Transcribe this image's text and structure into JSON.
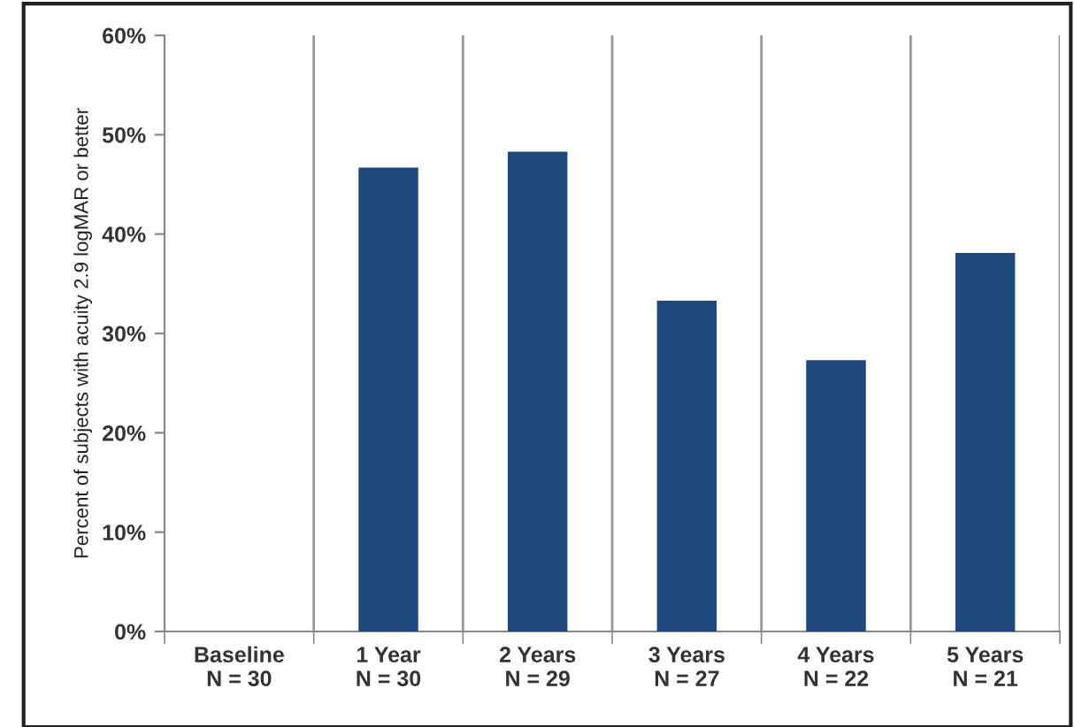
{
  "chart_data": {
    "type": "bar",
    "ylabel": "Percent of subjects with acuity 2.9 logMAR or better",
    "categories": [
      "Baseline\nN = 30",
      "1 Year\nN = 30",
      "2 Years\nN = 29",
      "3 Years\nN = 27",
      "4 Years\nN = 22",
      "5 Years\nN = 21"
    ],
    "values": [
      0,
      46.7,
      48.3,
      33.3,
      27.3,
      38.1
    ],
    "color": "#1f497d",
    "ylim": [
      0,
      60
    ],
    "yticks": [
      {
        "value": 0,
        "label": "0%"
      },
      {
        "value": 10,
        "label": "10%"
      },
      {
        "value": 20,
        "label": "20%"
      },
      {
        "value": 30,
        "label": "30%"
      },
      {
        "value": 40,
        "label": "40%"
      },
      {
        "value": 50,
        "label": "50%"
      },
      {
        "value": 60,
        "label": "60%"
      }
    ],
    "grid": "x"
  }
}
